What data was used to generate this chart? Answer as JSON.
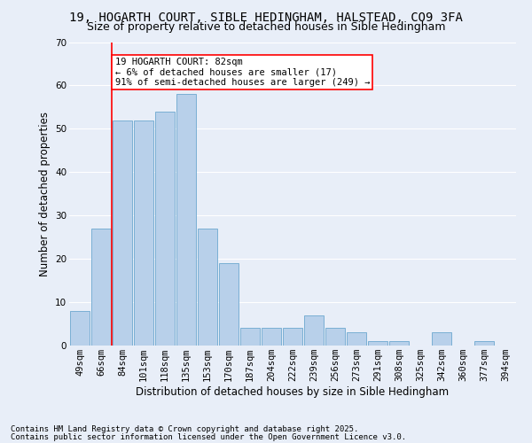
{
  "title_line1": "19, HOGARTH COURT, SIBLE HEDINGHAM, HALSTEAD, CO9 3FA",
  "title_line2": "Size of property relative to detached houses in Sible Hedingham",
  "xlabel": "Distribution of detached houses by size in Sible Hedingham",
  "ylabel": "Number of detached properties",
  "categories": [
    "49sqm",
    "66sqm",
    "84sqm",
    "101sqm",
    "118sqm",
    "135sqm",
    "153sqm",
    "170sqm",
    "187sqm",
    "204sqm",
    "222sqm",
    "239sqm",
    "256sqm",
    "273sqm",
    "291sqm",
    "308sqm",
    "325sqm",
    "342sqm",
    "360sqm",
    "377sqm",
    "394sqm"
  ],
  "values": [
    8,
    27,
    52,
    52,
    54,
    58,
    27,
    19,
    4,
    4,
    4,
    7,
    4,
    3,
    1,
    1,
    0,
    3,
    0,
    1,
    0
  ],
  "bar_color": "#b8d0ea",
  "bar_edge_color": "#7aafd4",
  "ylim": [
    0,
    70
  ],
  "yticks": [
    0,
    10,
    20,
    30,
    40,
    50,
    60,
    70
  ],
  "red_line_index": 1.5,
  "annotation_text": "19 HOGARTH COURT: 82sqm\n← 6% of detached houses are smaller (17)\n91% of semi-detached houses are larger (249) →",
  "footer_line1": "Contains HM Land Registry data © Crown copyright and database right 2025.",
  "footer_line2": "Contains public sector information licensed under the Open Government Licence v3.0.",
  "background_color": "#e8eef8",
  "grid_color": "#ffffff",
  "title_fontsize": 10,
  "subtitle_fontsize": 9,
  "axis_label_fontsize": 8.5,
  "tick_fontsize": 7.5,
  "footer_fontsize": 6.5,
  "annotation_fontsize": 7.5
}
